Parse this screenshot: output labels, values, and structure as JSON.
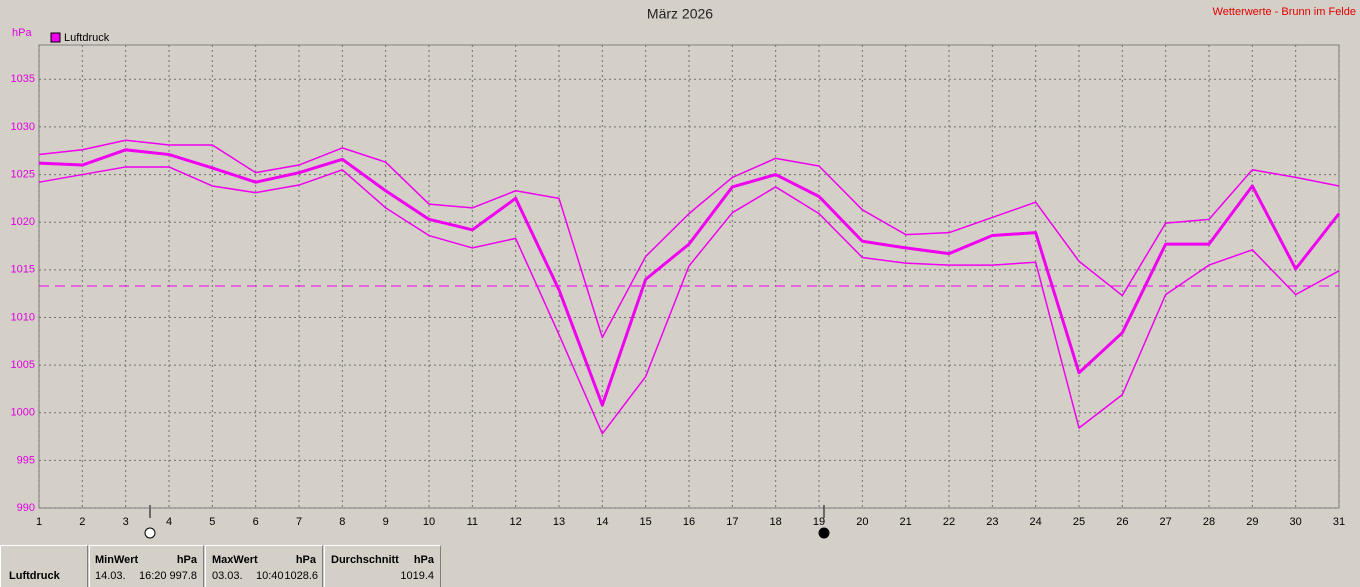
{
  "chart_data": {
    "type": "line",
    "title": "März 2026",
    "source": "Wetterwerte - Brunn im Felde",
    "y_label": "hPa",
    "x": [
      1,
      2,
      3,
      4,
      5,
      6,
      7,
      8,
      9,
      10,
      11,
      12,
      13,
      14,
      15,
      16,
      17,
      18,
      19,
      20,
      21,
      22,
      23,
      24,
      25,
      26,
      27,
      28,
      29,
      30,
      31
    ],
    "xlim": [
      1,
      31
    ],
    "xticks": [
      1,
      2,
      3,
      4,
      5,
      6,
      7,
      8,
      9,
      10,
      11,
      12,
      13,
      14,
      15,
      16,
      17,
      18,
      19,
      20,
      21,
      22,
      23,
      24,
      25,
      26,
      27,
      28,
      29,
      30,
      31
    ],
    "ylim": [
      990,
      1038.6
    ],
    "yticks": [
      990,
      995,
      1000,
      1005,
      1010,
      1015,
      1020,
      1025,
      1030,
      1035
    ],
    "grid": true,
    "legend": "top-left",
    "reference_line": 1013.3,
    "series": [
      {
        "color": "#f000f0",
        "width": 1.5,
        "values": [
          1027.1,
          1027.6,
          1028.6,
          1028.1,
          1028.1,
          1025.2,
          1026.0,
          1027.8,
          1026.3,
          1021.9,
          1021.5,
          1023.3,
          1022.5,
          1007.9,
          1016.4,
          1020.9,
          1024.7,
          1026.7,
          1025.9,
          1021.3,
          1018.7,
          1018.9,
          1020.5,
          1022.1,
          1015.9,
          1012.3,
          1019.9,
          1020.3,
          1025.5,
          1024.7,
          1023.8
        ]
      },
      {
        "name": "Luftdruck",
        "color": "#f000f0",
        "width": 3,
        "values": [
          1026.2,
          1026.0,
          1027.6,
          1027.1,
          1025.7,
          1024.2,
          1025.2,
          1026.6,
          1023.3,
          1020.3,
          1019.2,
          1022.5,
          1012.9,
          1000.8,
          1014.0,
          1017.7,
          1023.7,
          1025.0,
          1022.7,
          1018.0,
          1017.3,
          1016.7,
          1018.6,
          1018.9,
          1004.2,
          1008.4,
          1017.7,
          1017.7,
          1023.8,
          1015.1,
          1020.9
        ]
      },
      {
        "color": "#f000f0",
        "width": 1.5,
        "values": [
          1024.2,
          1025.0,
          1025.8,
          1025.8,
          1023.8,
          1023.1,
          1023.9,
          1025.5,
          1021.5,
          1018.6,
          1017.3,
          1018.3,
          1008.2,
          997.8,
          1003.8,
          1015.4,
          1021.0,
          1023.7,
          1020.9,
          1016.3,
          1015.7,
          1015.5,
          1015.5,
          1015.8,
          998.4,
          1001.9,
          1012.4,
          1015.5,
          1017.1,
          1012.4,
          1014.9
        ]
      }
    ]
  },
  "stats": {
    "label": "Luftdruck",
    "columns": [
      {
        "title": "MinWert",
        "unit": "hPa",
        "date": "14.03.",
        "time": "16:20",
        "value": 997.8
      },
      {
        "title": "MaxWert",
        "unit": "hPa",
        "date": "03.03.",
        "time": "10:40",
        "value": 1028.6
      },
      {
        "title": "Durchschnitt",
        "unit": "hPa",
        "value": 1019.4
      }
    ]
  }
}
